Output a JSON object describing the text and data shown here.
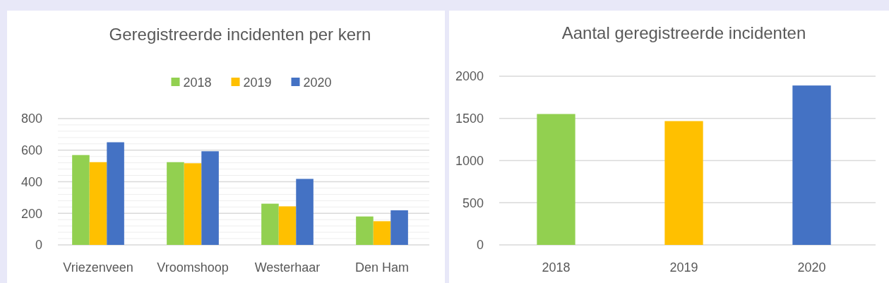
{
  "chart_data": [
    {
      "type": "bar",
      "title": "Geregistreerde incidenten per kern",
      "categories": [
        "Vriezenveen",
        "Vroomshoop",
        "Westerhaar",
        "Den Ham"
      ],
      "series": [
        {
          "name": "2018",
          "color": "#92d050",
          "values": [
            569,
            524,
            261,
            180
          ]
        },
        {
          "name": "2019",
          "color": "#ffc000",
          "values": [
            524,
            517,
            244,
            150
          ]
        },
        {
          "name": "2020",
          "color": "#4472c4",
          "values": [
            650,
            593,
            418,
            219
          ]
        }
      ],
      "ylim": [
        0,
        800
      ],
      "yticks": [
        0,
        {
          "value": 40,
          "label": null
        },
        {
          "value": 80,
          "label": null
        },
        {
          "value": 120,
          "label": null
        },
        {
          "value": 160,
          "label": null
        },
        200,
        {
          "value": 240,
          "label": null
        },
        {
          "value": 280,
          "label": null
        },
        {
          "value": 320,
          "label": null
        },
        {
          "value": 360,
          "label": null
        },
        400,
        {
          "value": 440,
          "label": null
        },
        {
          "value": 480,
          "label": null
        },
        {
          "value": 520,
          "label": null
        },
        {
          "value": 560,
          "label": null
        },
        600,
        {
          "value": 640,
          "label": null
        },
        {
          "value": 680,
          "label": null
        },
        {
          "value": 720,
          "label": null
        },
        {
          "value": 760,
          "label": null
        },
        800
      ],
      "grid": true,
      "legend": "top"
    },
    {
      "type": "bar",
      "title": "Aantal geregistreerde incidenten",
      "categories": [
        "2018",
        "2019",
        "2020"
      ],
      "values": [
        1552,
        1468,
        1890
      ],
      "colors": [
        "#92d050",
        "#ffc000",
        "#4472c4"
      ],
      "ylim": [
        0,
        2000
      ],
      "yticks": [
        0,
        500,
        1000,
        1500,
        2000
      ],
      "grid": true
    }
  ]
}
